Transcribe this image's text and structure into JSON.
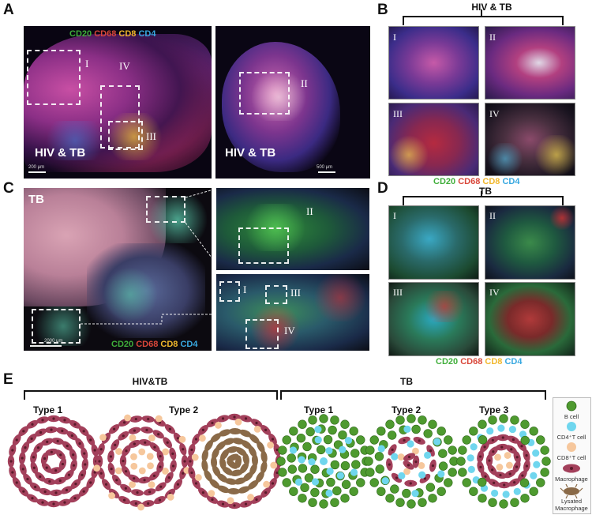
{
  "panel_letters": {
    "a": "A",
    "b": "B",
    "c": "C",
    "d": "D",
    "e": "E"
  },
  "markers": [
    {
      "name": "CD20",
      "color": "#3fae3a"
    },
    {
      "name": "CD68",
      "color": "#d9473a"
    },
    {
      "name": "CD8",
      "color": "#f1b72b"
    },
    {
      "name": "CD4",
      "color": "#38a8e0"
    }
  ],
  "panel_a": {
    "left_label": "HIV & TB",
    "right_label": "HIV & TB",
    "left_scale": "200 μm",
    "right_scale": "500 μm",
    "rois": [
      "I",
      "IV",
      "III",
      "II"
    ]
  },
  "panel_b": {
    "title": "HIV & TB",
    "tiles": [
      "I",
      "II",
      "III",
      "IV"
    ]
  },
  "panel_c": {
    "tag": "TB",
    "scale": "2000 μm",
    "rois": [
      "II",
      "I",
      "III",
      "IV"
    ]
  },
  "panel_d": {
    "title": "TB",
    "tiles": [
      "I",
      "II",
      "III",
      "IV"
    ]
  },
  "panel_e": {
    "group_hivtb": "HIV&TB",
    "group_tb": "TB",
    "types": [
      "Type 1",
      "Type 2",
      "Type 1",
      "Type 2",
      "Type 3"
    ],
    "key": [
      "B cell",
      "CD4⁺T cell",
      "CD8⁺T cell",
      "Macrophage",
      "Lysated Macrophage"
    ]
  },
  "colors": {
    "b_cell": "#4e9a2f",
    "cd4_t_cell": "#6fd6ee",
    "cd8_t_cell": "#f6c79c",
    "macrophage": "#a3405b",
    "lysated_macrophage": "#8a6a48"
  }
}
